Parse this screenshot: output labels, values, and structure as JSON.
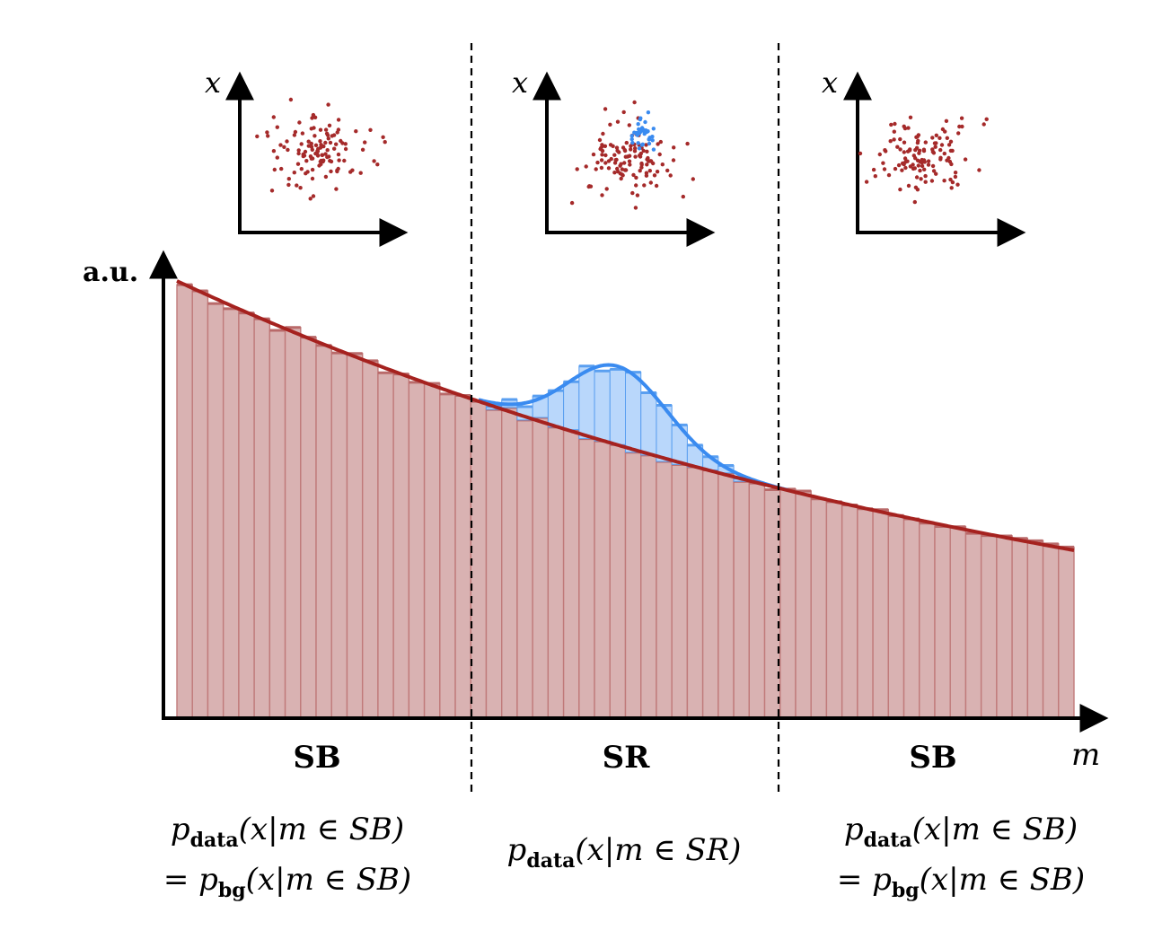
{
  "colors": {
    "background_bar_fill": "#d9b2b2",
    "background_bar_edge": "#c07a7a",
    "background_curve": "#a5221f",
    "signal_fill": "#b9d7fb",
    "signal_edge": "#5a9ff0",
    "signal_curve": "#3a8bf0",
    "scatter_background": "#a52a2a",
    "scatter_signal": "#3a8bf0"
  },
  "labels": {
    "y_axis": "a.u.",
    "x_axis": "m",
    "inset_axis": "x",
    "region_left": "SB",
    "region_center": "SR",
    "region_right": "SB"
  },
  "formulas": {
    "left_line1_p": "p",
    "left_line1_sub": "data",
    "left_line1_rest": "(x|m ∈ SB)",
    "left_line2_prefix": "= p",
    "left_line2_sub": "bg",
    "left_line2_rest": "(x|m ∈ SB)",
    "center_p": "p",
    "center_sub": "data",
    "center_rest": "(x|m ∈ SR)",
    "right_line1_p": "p",
    "right_line1_sub": "data",
    "right_line1_rest": "(x|m ∈ SB)",
    "right_line2_prefix": "= p",
    "right_line2_sub": "bg",
    "right_line2_rest": "(x|m ∈ SB)"
  },
  "chart_data": {
    "type": "bar",
    "bins": 58,
    "region_boundaries_bin": [
      20,
      40
    ],
    "background_amplitude": 1.0,
    "background_decay": 0.0165,
    "signal_center_bin": 28.5,
    "signal_width_bins": 3.2,
    "signal_amplitude": 0.18,
    "ylim": [
      0,
      1.0
    ],
    "grid": false
  }
}
